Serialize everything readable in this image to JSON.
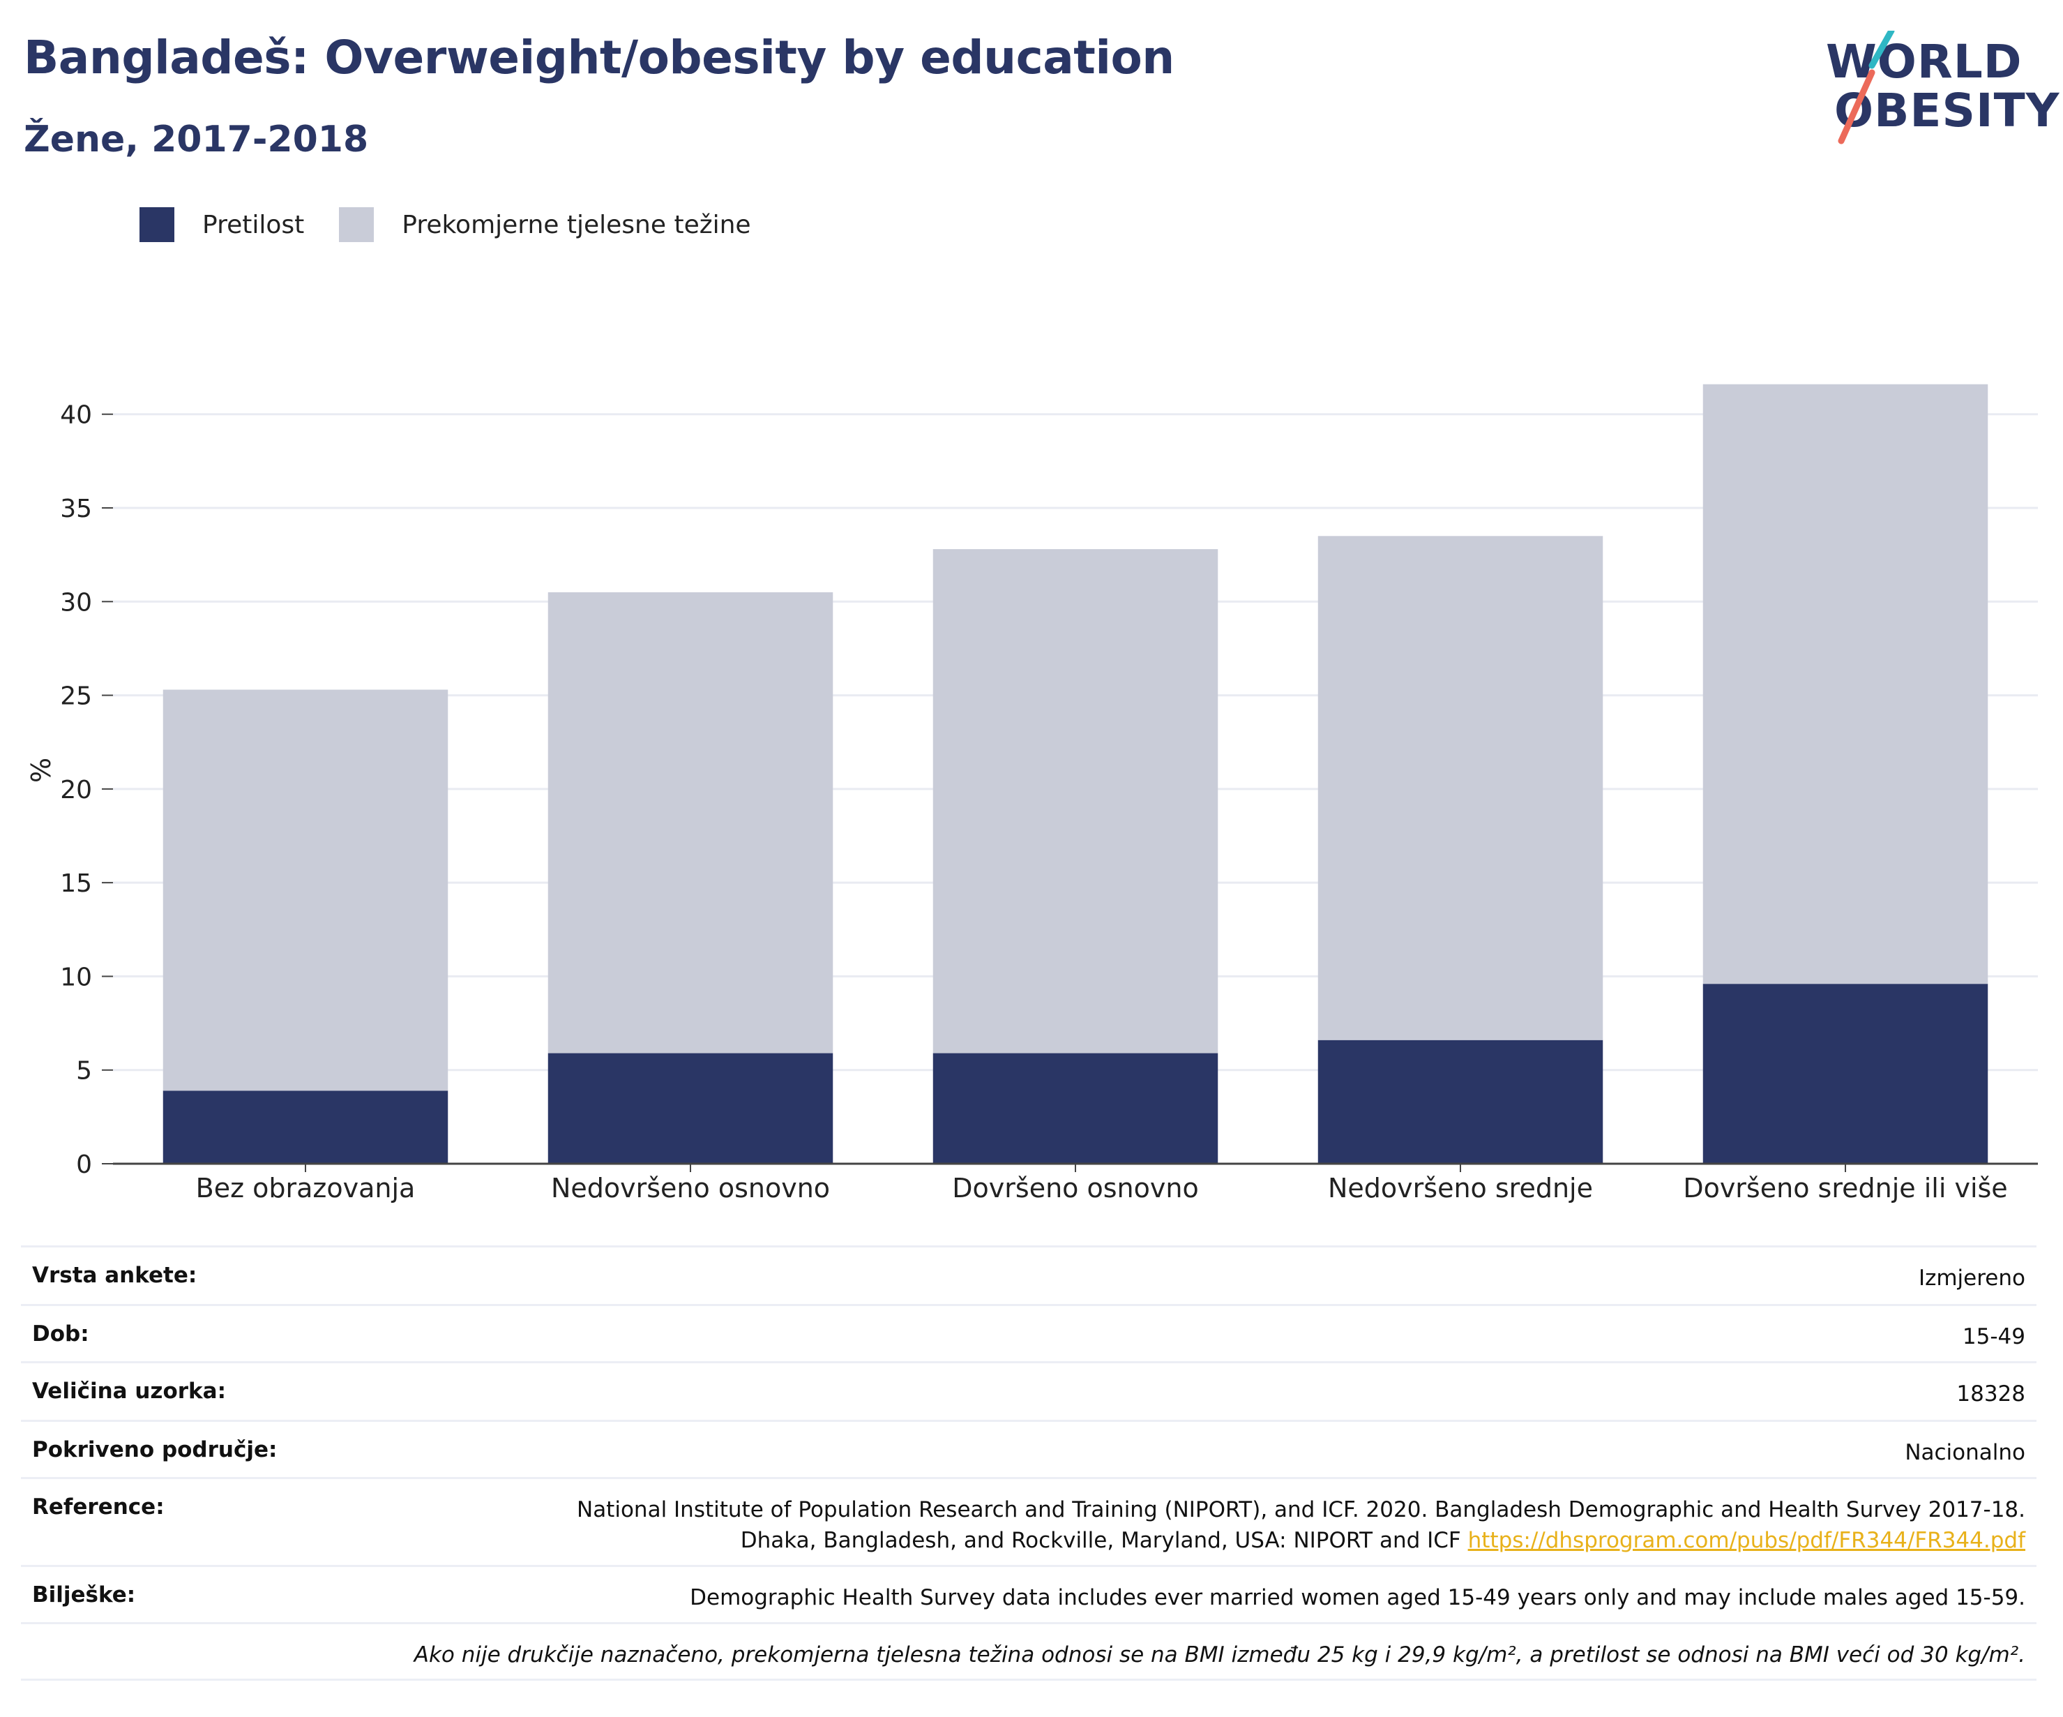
{
  "title": "Bangladeš: Overweight/obesity by education",
  "subtitle": "Žene, 2017-2018",
  "logo": {
    "line1": "WORLD",
    "line2": "OBESITY"
  },
  "colors": {
    "obesity": "#2a3665",
    "overweight": "#c9ccd8",
    "accent": "#2a3665",
    "link": "#e8b11a"
  },
  "legend": [
    {
      "label": "Pretilost",
      "color": "#2a3665"
    },
    {
      "label": "Prekomjerne tjelesne težine",
      "color": "#c9ccd8"
    }
  ],
  "chart_data": {
    "type": "bar",
    "stacked": true,
    "categories": [
      "Bez obrazovanja",
      "Nedovršeno osnovno",
      "Dovršeno osnovno",
      "Nedovršeno srednje",
      "Dovršeno srednje ili više"
    ],
    "series": [
      {
        "name": "Pretilost",
        "values": [
          3.9,
          5.9,
          5.9,
          6.6,
          9.6
        ]
      },
      {
        "name": "Prekomjerne tjelesne težine",
        "values": [
          21.4,
          24.6,
          26.9,
          26.9,
          32.0
        ]
      }
    ],
    "ylabel": "%",
    "ylim": [
      0,
      42
    ],
    "yticks": [
      0,
      5,
      10,
      15,
      20,
      25,
      30,
      35,
      40
    ],
    "grid": true,
    "legend_position": "top-left"
  },
  "info": {
    "survey_type": {
      "label": "Vrsta ankete:",
      "value": "Izmjereno"
    },
    "age": {
      "label": "Dob:",
      "value": "15-49"
    },
    "sample_size": {
      "label": "Veličina uzorka:",
      "value": "18328"
    },
    "coverage": {
      "label": "Pokriveno područje:",
      "value": "Nacionalno"
    },
    "reference": {
      "label": "Reference:",
      "line1": "National Institute of Population Research and Training (NIPORT), and ICF. 2020. Bangladesh Demographic and Health Survey 2017-18.",
      "line2": "Dhaka, Bangladesh, and Rockville, Maryland, USA: NIPORT and ICF",
      "link": "https://dhsprogram.com/pubs/pdf/FR344/FR344.pdf"
    },
    "notes": {
      "label": "Bilješke:",
      "value": "Demographic Health Survey data includes ever married women aged 15-49 years only and may include males aged 15-59."
    },
    "footnote": "Ako nije drukčije naznačeno, prekomjerna tjelesna težina odnosi se na BMI između 25 kg i 29,9 kg/m², a pretilost se odnosi na BMI veći od 30 kg/m²."
  }
}
